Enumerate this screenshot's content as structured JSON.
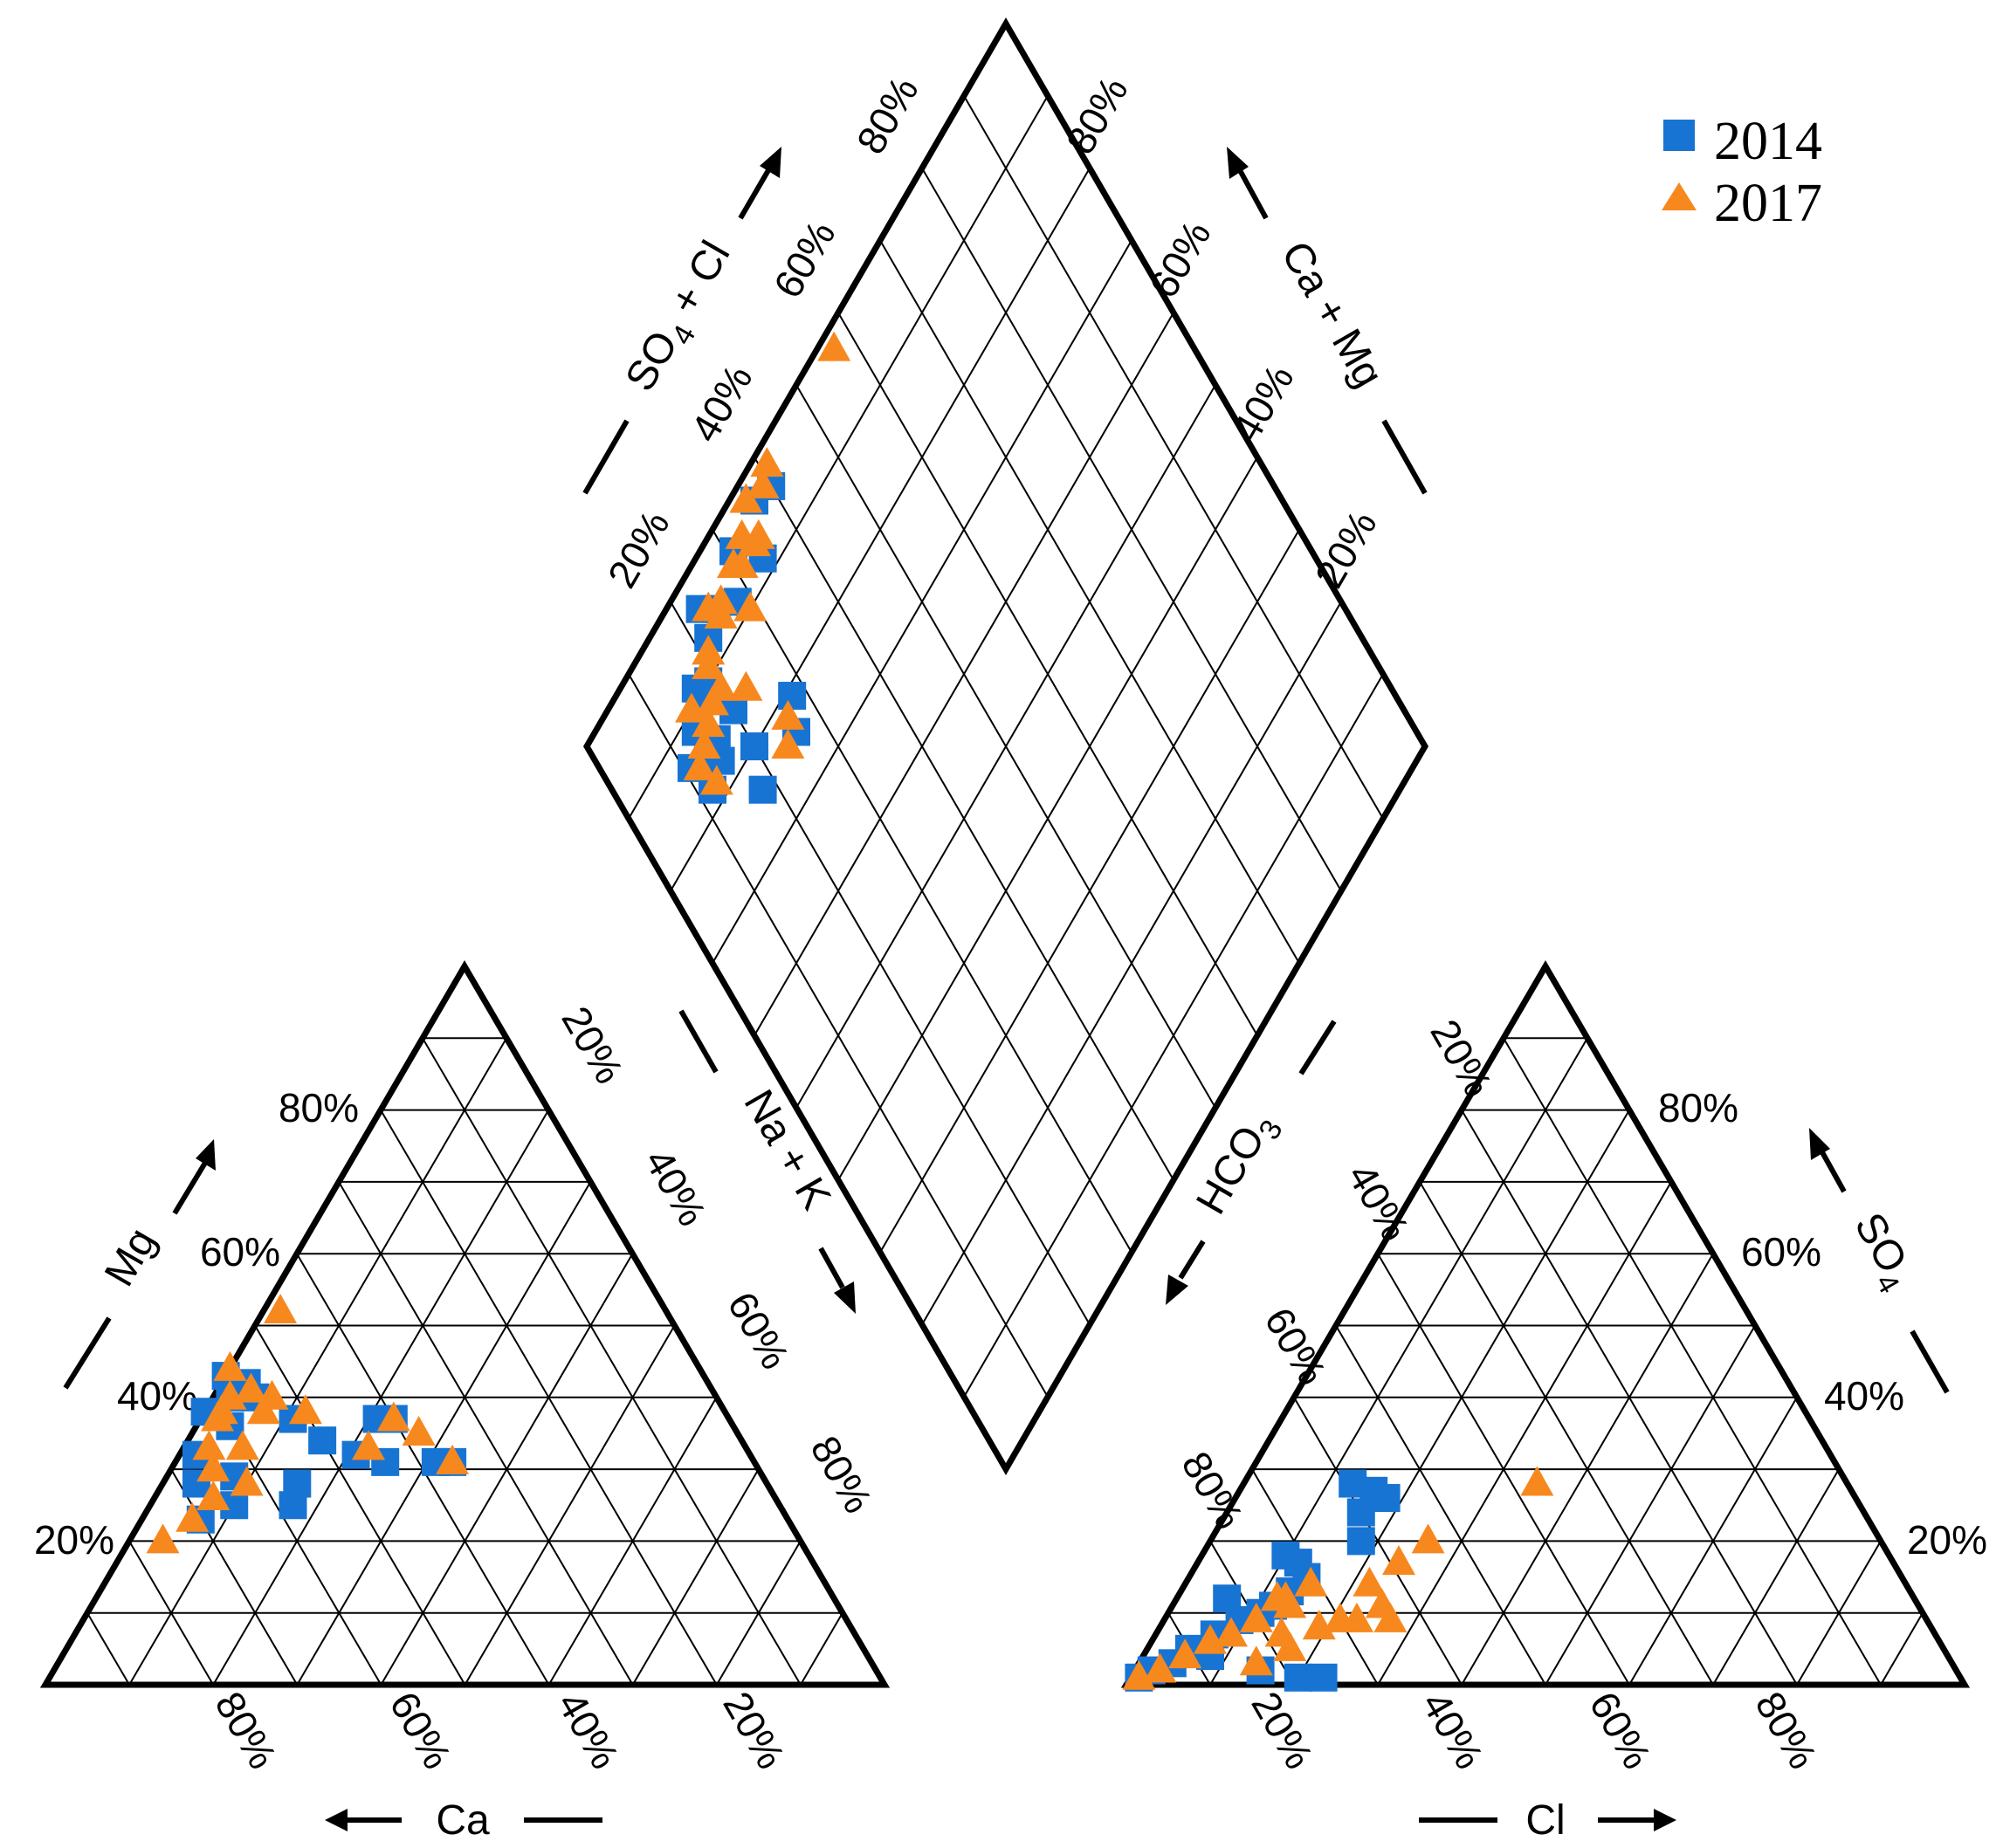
{
  "chart_data": {
    "type": "scatter",
    "diagram": "piper",
    "grid_step_percent": 10,
    "legend": {
      "position": "top-right",
      "items": [
        {
          "label": "2014",
          "marker": "square",
          "color": "#1874D3"
        },
        {
          "label": "2017",
          "marker": "triangle",
          "color": "#F7881E"
        }
      ]
    },
    "cation_triangle": {
      "labels": {
        "bottom": "Ca",
        "left": "Mg",
        "right": "Na + K"
      },
      "bottom_ticks": [
        "80%",
        "60%",
        "40%",
        "20%"
      ],
      "left_ticks": [
        "20%",
        "40%",
        "60%",
        "80%"
      ],
      "right_ticks": [
        "20%",
        "40%",
        "60%",
        "80%"
      ],
      "series": [
        {
          "name": "2014",
          "marker": "square",
          "color": "#1874D3",
          "points": [
            [
              65,
              25
            ],
            [
              70,
              23
            ],
            [
              63,
              29
            ],
            [
              68,
              28
            ],
            [
              66,
              32
            ],
            [
              60,
              36
            ],
            [
              62,
              38
            ],
            [
              58,
              40
            ],
            [
              55,
              40
            ],
            [
              57,
              43
            ],
            [
              55,
              42
            ],
            [
              52,
              37
            ],
            [
              50,
              34
            ],
            [
              47,
              32
            ],
            [
              44,
              31
            ],
            [
              40,
              37
            ],
            [
              42,
              37
            ],
            [
              36,
              31
            ],
            [
              38,
              31
            ],
            [
              56,
              28
            ],
            [
              58,
              25
            ]
          ]
        },
        {
          "name": "2017",
          "marker": "triangle",
          "color": "#F7881E",
          "points": [
            [
              76,
              20
            ],
            [
              71,
              23
            ],
            [
              67,
              26
            ],
            [
              65,
              30
            ],
            [
              64,
              33
            ],
            [
              61,
              37
            ],
            [
              60,
              38
            ],
            [
              58,
              40
            ],
            [
              56,
              44
            ],
            [
              55,
              41
            ],
            [
              53,
              40
            ],
            [
              50,
              38
            ],
            [
              45,
              33
            ],
            [
              40,
              37
            ],
            [
              38,
              35
            ],
            [
              36,
              31
            ],
            [
              46,
              52
            ],
            [
              60,
              33
            ],
            [
              55,
              38
            ],
            [
              62,
              28
            ]
          ]
        }
      ]
    },
    "anion_triangle": {
      "labels": {
        "bottom": "Cl",
        "left": "HCO3",
        "right": "SO4"
      },
      "bottom_ticks": [
        "20%",
        "40%",
        "60%",
        "80%"
      ],
      "left_ticks": [
        "20%",
        "40%",
        "60%",
        "80%"
      ],
      "right_ticks": [
        "20%",
        "40%",
        "60%",
        "80%"
      ],
      "series": [
        {
          "name": "2014",
          "marker": "square",
          "color": "#1874D3",
          "points": [
            [
              1,
              1
            ],
            [
              2,
              2
            ],
            [
              4,
              3
            ],
            [
              5,
              5
            ],
            [
              7,
              7
            ],
            [
              9,
              9
            ],
            [
              11,
              10
            ],
            [
              13,
              13
            ],
            [
              14,
              15
            ],
            [
              12,
              11
            ],
            [
              8,
              4
            ],
            [
              15,
              2
            ],
            [
              20,
              1
            ],
            [
              23,
              1
            ],
            [
              18,
              20
            ],
            [
              16,
              24
            ],
            [
              6,
              12
            ],
            [
              10,
              18
            ],
            [
              12,
              17
            ],
            [
              13,
              28
            ],
            [
              16,
              27
            ],
            [
              18,
              26
            ]
          ]
        },
        {
          "name": "2017",
          "marker": "triangle",
          "color": "#F7881E",
          "points": [
            [
              1,
              1
            ],
            [
              3,
              2
            ],
            [
              5,
              4
            ],
            [
              7,
              6
            ],
            [
              9,
              7
            ],
            [
              11,
              9
            ],
            [
              13,
              12
            ],
            [
              15,
              14
            ],
            [
              14,
              11
            ],
            [
              15,
              7
            ],
            [
              17,
              5
            ],
            [
              19,
              8
            ],
            [
              21,
              9
            ],
            [
              23,
              9
            ],
            [
              25,
              11
            ],
            [
              27,
              9
            ],
            [
              22,
              14
            ],
            [
              24,
              17
            ],
            [
              26,
              20
            ],
            [
              14,
              3
            ],
            [
              35,
              28
            ],
            [
              12,
              12
            ]
          ]
        }
      ]
    },
    "diamond": {
      "labels": {
        "upper_left": "SO4 + Cl",
        "upper_right": "Ca + Mg"
      },
      "upper_left_ticks": [
        "20%",
        "40%",
        "60%",
        "80%"
      ],
      "upper_right_ticks": [
        "20%",
        "40%",
        "60%",
        "80%"
      ],
      "series": [
        {
          "name": "2014",
          "marker": "square",
          "color": "#1874D3",
          "points": [
            [
              12,
              82
            ],
            [
              14,
              84
            ],
            [
              11,
              86
            ],
            [
              15,
              86
            ],
            [
              16,
              85
            ],
            [
              14,
              88
            ],
            [
              17,
              90
            ],
            [
              19,
              90
            ],
            [
              15,
              83
            ],
            [
              20,
              85
            ],
            [
              17,
              91
            ],
            [
              22,
              93
            ],
            [
              25,
              94
            ],
            [
              23,
              96
            ],
            [
              28,
              92
            ],
            [
              34,
              92
            ],
            [
              31,
              96
            ],
            [
              37,
              97
            ],
            [
              40,
              96
            ],
            [
              20,
              80
            ],
            [
              18,
              76
            ],
            [
              26,
              76
            ],
            [
              28,
              79
            ]
          ]
        },
        {
          "name": "2017",
          "marker": "triangle",
          "color": "#F7881E",
          "points": [
            [
              13,
              82
            ],
            [
              12,
              85
            ],
            [
              14,
              86
            ],
            [
              16,
              87
            ],
            [
              15,
              90
            ],
            [
              18,
              88
            ],
            [
              20,
              88
            ],
            [
              21,
              92
            ],
            [
              20,
              91
            ],
            [
              24,
              95
            ],
            [
              26,
              94
            ],
            [
              25,
              93
            ],
            [
              29,
              90
            ],
            [
              31,
              94
            ],
            [
              34,
              94
            ],
            [
              33,
              96
            ],
            [
              35,
              94
            ],
            [
              30,
              95
            ],
            [
              36,
              98
            ],
            [
              39,
              97
            ],
            [
              41,
              98
            ],
            [
              23,
              85
            ],
            [
              24,
              76
            ],
            [
              26,
              78
            ],
            [
              57,
              98
            ]
          ]
        }
      ]
    }
  }
}
